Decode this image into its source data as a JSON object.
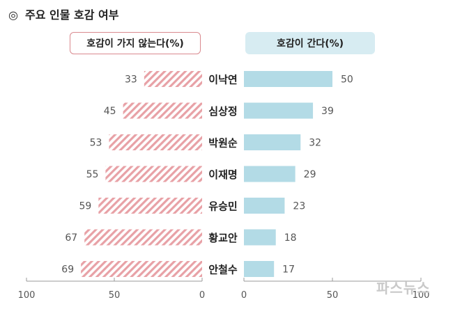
{
  "title": {
    "mark": "◎",
    "text": "주요 인물 호감 여부"
  },
  "headers": {
    "negative": "호감이 가지 않는다(%)",
    "positive": "호감이 간다(%)"
  },
  "watermark": "파스뉴스",
  "colors": {
    "negative": "#e8a1a6",
    "positive": "#b3dbe6",
    "axis": "#999999"
  },
  "chart_data": {
    "type": "bar",
    "categories": [
      "이낙연",
      "심상정",
      "박원순",
      "이재명",
      "유승민",
      "황교안",
      "안철수"
    ],
    "series": [
      {
        "name": "호감이 가지 않는다(%)",
        "values": [
          33,
          45,
          53,
          55,
          59,
          67,
          69
        ]
      },
      {
        "name": "호감이 간다(%)",
        "values": [
          50,
          39,
          32,
          29,
          23,
          18,
          17
        ]
      }
    ],
    "xlim_negative": [
      100,
      0
    ],
    "xlim_positive": [
      0,
      100
    ],
    "ticks_negative": [
      "100",
      "50",
      "0"
    ],
    "ticks_positive": [
      "0",
      "50",
      "100"
    ]
  }
}
